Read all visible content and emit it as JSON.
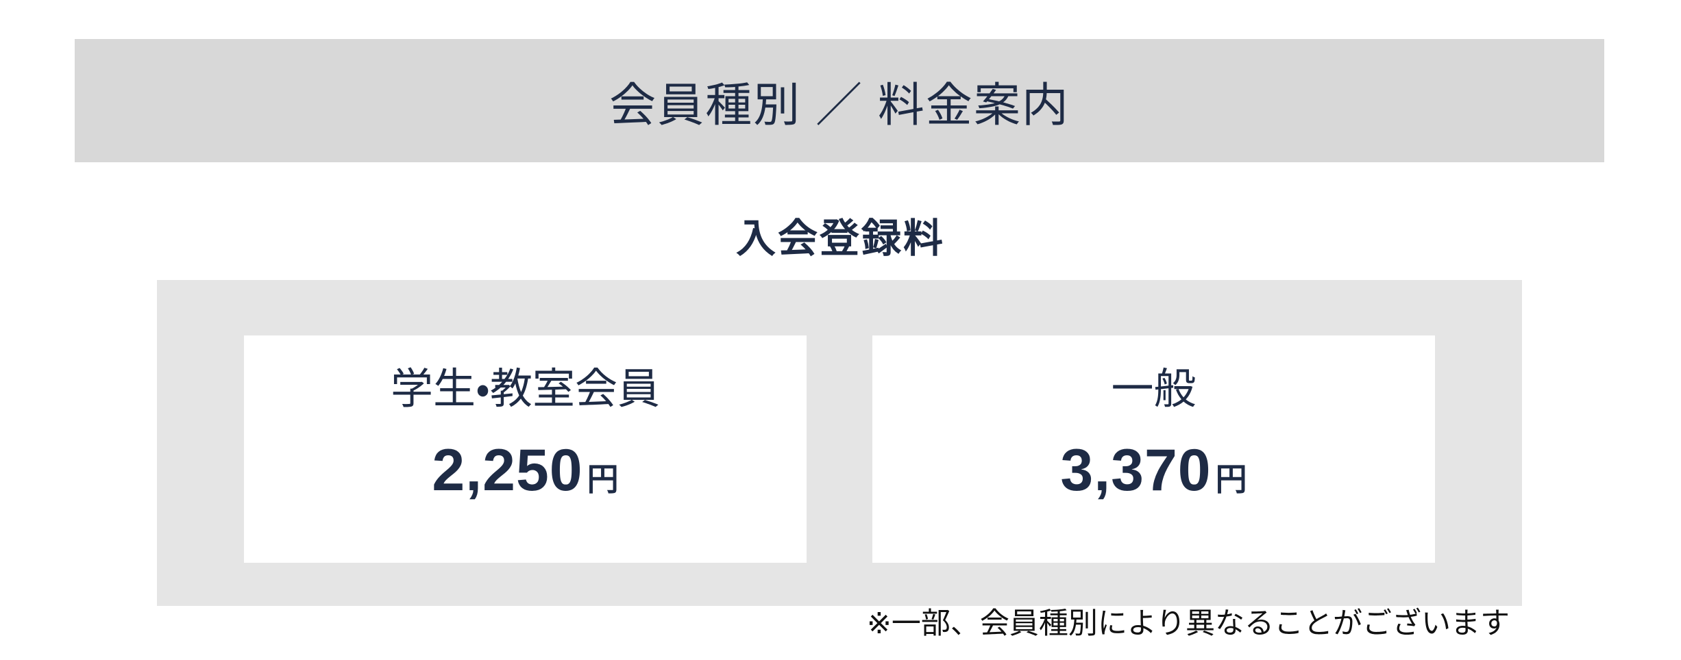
{
  "header": {
    "title": "会員種別 ／ 料金案内"
  },
  "section": {
    "title": "入会登録料"
  },
  "pricing": {
    "cards": [
      {
        "name": "学生・教室会員",
        "price": "2,250",
        "currency": "円"
      },
      {
        "name": "一般",
        "price": "3,370",
        "currency": "円"
      }
    ]
  },
  "footnote": {
    "text": "※一部、会員種別により異なることがございます"
  },
  "colors": {
    "text_navy": "#1e2b45",
    "banner_background": "#d8d8d8",
    "panel_background": "#e5e5e5",
    "card_background": "#ffffff",
    "footnote_text": "#111111"
  }
}
